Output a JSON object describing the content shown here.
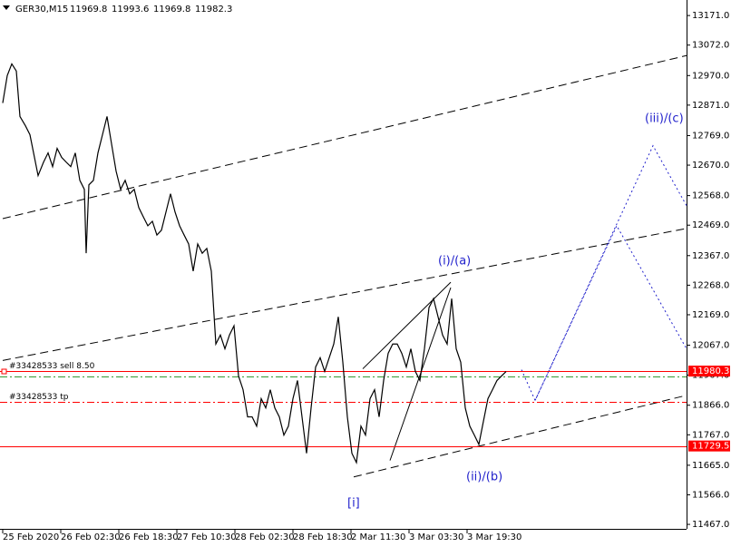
{
  "chart_data": {
    "type": "line",
    "symbol": "GER30,M15",
    "ohlc": [
      11969.8,
      11993.6,
      11969.8,
      11982.3
    ],
    "x": [
      0,
      5,
      10,
      15,
      19,
      25,
      30,
      35,
      39,
      45,
      50,
      55,
      60,
      65,
      70,
      75,
      80,
      85,
      90,
      92,
      95,
      100,
      105,
      110,
      115,
      120,
      125,
      130,
      135,
      140,
      145,
      150,
      155,
      160,
      165,
      170,
      175,
      180,
      185,
      190,
      195,
      200,
      205,
      210,
      215,
      220,
      225,
      230,
      235,
      240,
      245,
      250,
      255,
      260,
      265,
      270,
      275,
      280,
      285,
      290,
      295,
      300,
      305,
      310,
      315,
      320,
      325,
      330,
      335,
      340,
      345,
      350,
      355,
      360,
      365,
      370,
      375,
      380,
      385,
      390,
      395,
      400,
      405,
      410,
      415,
      420,
      425,
      430,
      435,
      440,
      445,
      450,
      455,
      460,
      465,
      470,
      475,
      480,
      485,
      490,
      495,
      500,
      505,
      510,
      515,
      520,
      525,
      530,
      535,
      540,
      545,
      550,
      555
    ],
    "values": [
      12878,
      12970,
      13009,
      12985,
      12833,
      12802,
      12772,
      12696,
      12635,
      12680,
      12711,
      12665,
      12726,
      12696,
      12680,
      12665,
      12711,
      12619,
      12589,
      12375,
      12604,
      12619,
      12711,
      12772,
      12833,
      12741,
      12650,
      12589,
      12619,
      12574,
      12589,
      12528,
      12497,
      12467,
      12482,
      12436,
      12452,
      12513,
      12574,
      12513,
      12467,
      12436,
      12406,
      12315,
      12406,
      12375,
      12391,
      12315,
      12071,
      12101,
      12055,
      12101,
      12132,
      11964,
      11918,
      11827,
      11827,
      11796,
      11888,
      11857,
      11918,
      11857,
      11827,
      11766,
      11796,
      11888,
      11949,
      11827,
      11705,
      11857,
      11994,
      12025,
      11979,
      12025,
      12071,
      12162,
      12010,
      11827,
      11705,
      11674,
      11796,
      11766,
      11888,
      11918,
      11827,
      11949,
      12040,
      12071,
      12071,
      12040,
      11994,
      12055,
      11979,
      11949,
      12055,
      12193,
      12223,
      12162,
      12101,
      12071,
      12223,
      12055,
      12010,
      11857,
      11796,
      11766,
      11735,
      11812,
      11888,
      11918,
      11949,
      11964,
      11979
    ],
    "color": "#000000",
    "xlim": [
      0,
      754
    ],
    "ylim": [
      11452,
      13223
    ],
    "xticks": [
      {
        "value": 0,
        "label": "25 Feb 2020"
      },
      {
        "value": 64,
        "label": "26 Feb 02:30"
      },
      {
        "value": 128,
        "label": "26 Feb 18:30"
      },
      {
        "value": 192,
        "label": "27 Feb 10:30"
      },
      {
        "value": 256,
        "label": "28 Feb 02:30"
      },
      {
        "value": 320,
        "label": "28 Feb 18:30"
      },
      {
        "value": 384,
        "label": "2 Mar 11:30"
      },
      {
        "value": 448,
        "label": "3 Mar 03:30"
      },
      {
        "value": 512,
        "label": "3 Mar 19:30"
      }
    ],
    "yticks": [
      {
        "value": 11467,
        "label": "11467.0"
      },
      {
        "value": 11566,
        "label": "11566.0"
      },
      {
        "value": 11665,
        "label": "11665.0"
      },
      {
        "value": 11767,
        "label": "11767.0"
      },
      {
        "value": 11866,
        "label": "11866.0"
      },
      {
        "value": 11967,
        "label": "11967.0"
      },
      {
        "value": 12067,
        "label": "12067.0"
      },
      {
        "value": 12169,
        "label": "12169.0"
      },
      {
        "value": 12268,
        "label": "12268.0"
      },
      {
        "value": 12367,
        "label": "12367.0"
      },
      {
        "value": 12469,
        "label": "12469.0"
      },
      {
        "value": 12568,
        "label": "12568.0"
      },
      {
        "value": 12670,
        "label": "12670.0"
      },
      {
        "value": 12769,
        "label": "12769.0"
      },
      {
        "value": 12871,
        "label": "12871.0"
      },
      {
        "value": 12970,
        "label": "12970.0"
      },
      {
        "value": 13072,
        "label": "13072.0"
      },
      {
        "value": 13171,
        "label": "13171.0"
      }
    ],
    "hlines": [
      {
        "value": 11980.3,
        "color": "#ff0000",
        "dash": "solid",
        "label": "#33428533 sell 8.50",
        "price_box": true
      },
      {
        "value": 11961,
        "color": "#339933",
        "dash": "dashdot"
      },
      {
        "value": 11876,
        "color": "#ff0000",
        "dash": "dashdot",
        "label": "#33428533 tp"
      },
      {
        "value": 11729.5,
        "color": "#ff0000",
        "dash": "solid",
        "price_box": true
      }
    ],
    "trendlines": [
      {
        "points": [
          [
            0,
            12491
          ],
          [
            754,
            13037
          ]
        ],
        "color": "#000000",
        "dash": "dashed"
      },
      {
        "points": [
          [
            0,
            12016
          ],
          [
            754,
            12458
          ]
        ],
        "color": "#000000",
        "dash": "dashed"
      },
      {
        "points": [
          [
            387,
            11626
          ],
          [
            751,
            11897
          ]
        ],
        "color": "#000000",
        "dash": "dashed"
      },
      {
        "points": [
          [
            397,
            11988
          ],
          [
            494,
            12278
          ]
        ],
        "color": "#000000",
        "dash": "solid"
      },
      {
        "points": [
          [
            427,
            11681
          ],
          [
            494,
            12260
          ]
        ],
        "color": "#000000",
        "dash": "solid"
      },
      {
        "points": [
          [
            572,
            11985
          ],
          [
            587,
            11882
          ],
          [
            717,
            12735
          ],
          [
            754,
            12534
          ]
        ],
        "color": "#2222cc",
        "dash": "dotted"
      },
      {
        "points": [
          [
            587,
            11882
          ],
          [
            677,
            12467
          ],
          [
            754,
            12055
          ]
        ],
        "color": "#2222cc",
        "dash": "dotted"
      }
    ],
    "annotations": [
      "(i)/(a)",
      "(ii)/(b)",
      "(iii)/(c)",
      "[i]"
    ],
    "annotation_color": "#2222cc"
  }
}
